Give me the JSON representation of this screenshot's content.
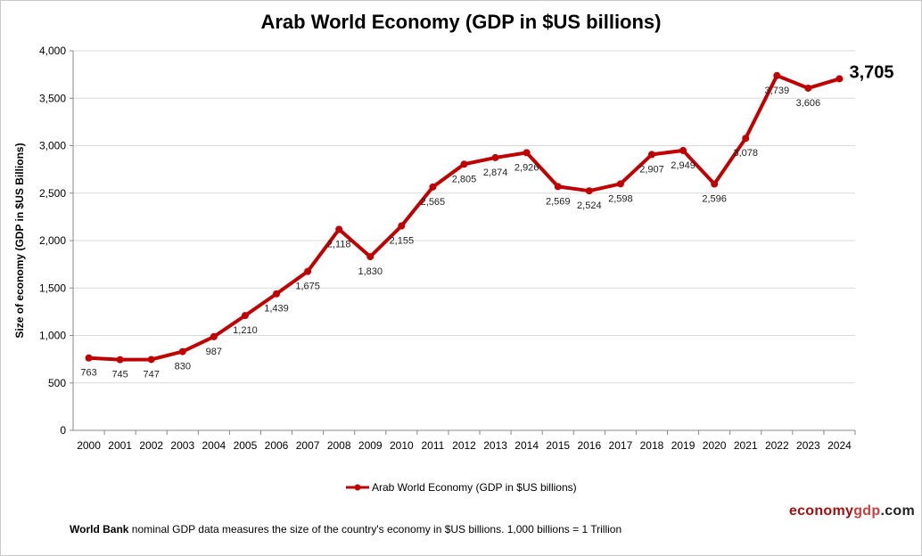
{
  "chart_data": {
    "type": "line",
    "title": "Arab World Economy (GDP in $US billions)",
    "xlabel": "",
    "ylabel": "Size of economy (GDP in $US Billions)",
    "categories": [
      "2000",
      "2001",
      "2002",
      "2003",
      "2004",
      "2005",
      "2006",
      "2007",
      "2008",
      "2009",
      "2010",
      "2011",
      "2012",
      "2013",
      "2014",
      "2015",
      "2016",
      "2017",
      "2018",
      "2019",
      "2020",
      "2021",
      "2022",
      "2023",
      "2024"
    ],
    "series": [
      {
        "name": "Arab World Economy (GDP in $US billions)",
        "values": [
          763,
          745,
          747,
          830,
          987,
          1210,
          1439,
          1675,
          2118,
          1830,
          2155,
          2565,
          2805,
          2874,
          2926,
          2569,
          2524,
          2598,
          2907,
          2949,
          2596,
          3078,
          3739,
          3606,
          3705
        ],
        "labels": [
          "763",
          "745",
          "747",
          "830",
          "987",
          "1,210",
          "1,439",
          "1,675",
          "2,118",
          "1,830",
          "2,155",
          "2,565",
          "2,805",
          "2,874",
          "2,926",
          "2,569",
          "2,524",
          "2,598",
          "2,907",
          "2,949",
          "2,596",
          "3,078",
          "3,739",
          "3,606",
          "3,705"
        ],
        "color": "#c00000"
      }
    ],
    "ylim": [
      0,
      4000
    ],
    "yticks": [
      "0",
      "500",
      "1,000",
      "1,500",
      "2,000",
      "2,500",
      "3,000",
      "3,500",
      "4,000"
    ],
    "grid": true,
    "legend": "bottom"
  },
  "footer": {
    "source_bold": "World Bank",
    "source_text": " nominal GDP data  measures the size of the country's economy in $US billions. 1,000 billions = 1 Trillion"
  },
  "brand": {
    "part1": "economy",
    "part2": "gdp",
    "part3": ".com"
  }
}
